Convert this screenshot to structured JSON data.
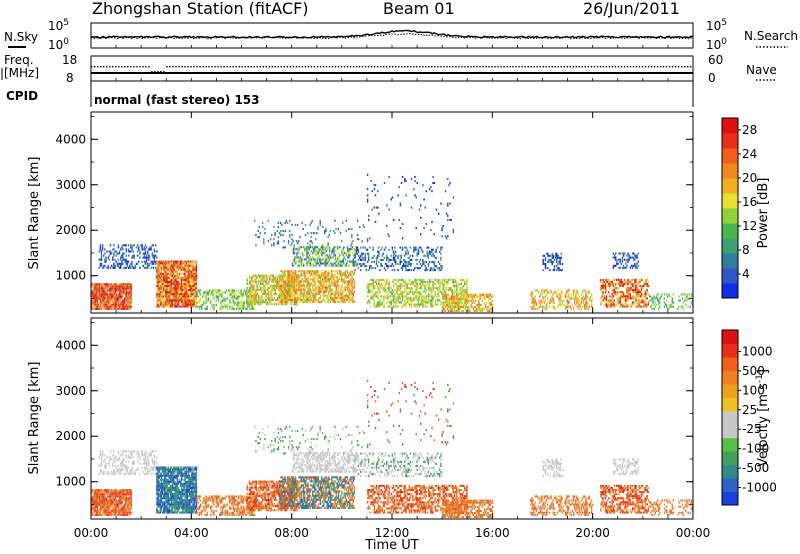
{
  "header": {
    "station_title": "Zhongshan Station (fitACF)",
    "beam": "Beam 01",
    "date": "26/Jun/2011"
  },
  "top_panels": {
    "nsky_label": "N.Sky",
    "nsky_tick_top": "10^5",
    "nsky_tick_bottom": "10^0",
    "nsearch_label": "N.Search",
    "nsearch_tick_top": "10^5",
    "nsearch_tick_bottom": "10^0",
    "freq_label_line1": "Freq.",
    "freq_label_line2": "[MHz]",
    "freq_tick_top": "18",
    "freq_tick_bottom": "8",
    "nave_label": "Nave",
    "nave_tick_top": "60",
    "nave_tick_bottom": "0",
    "cpid_label": "CPID",
    "cpid_value": "normal (fast stereo) 153"
  },
  "chart_data": [
    {
      "type": "heatmap",
      "name": "power",
      "ylabel": "Slant Range [km]",
      "yticks": [
        1000,
        2000,
        3000,
        4000
      ],
      "ylim": [
        180,
        4600
      ],
      "xlim": [
        0,
        24
      ],
      "colorbar_label": "Power [dB]",
      "colorbar_ticks": [
        4,
        8,
        12,
        16,
        20,
        24,
        28
      ],
      "colorbar_colors": [
        "#0a2ee6",
        "#2f56c8",
        "#2f7ea0",
        "#3fa070",
        "#46b84a",
        "#8fd23a",
        "#e8e030",
        "#f0b020",
        "#f08a20",
        "#f06018",
        "#e83018",
        "#e01010"
      ],
      "colorbar_range": [
        0,
        30
      ]
    },
    {
      "type": "heatmap",
      "name": "velocity",
      "ylabel": "Slant Range [km]",
      "yticks": [
        1000,
        2000,
        3000,
        4000
      ],
      "ylim": [
        180,
        4600
      ],
      "xlim": [
        0,
        24
      ],
      "colorbar_label": "Velocity [m s^-1]",
      "colorbar_ticks": [
        "1000",
        "500",
        "100",
        "25",
        "-25",
        "-100",
        "-500",
        "-1000"
      ],
      "colorbar_colors": [
        "#1a3ee0",
        "#2f62c8",
        "#2f8a8a",
        "#3fa060",
        "#58c040",
        "#c8c8c8",
        "#c8c8c8",
        "#f0c020",
        "#f0a020",
        "#f08020",
        "#f06018",
        "#e83018",
        "#e01010"
      ]
    }
  ],
  "x_axis": {
    "ticks": [
      "00:00",
      "04:00",
      "08:00",
      "12:00",
      "16:00",
      "20:00",
      "00:00"
    ],
    "label": "Time UT"
  }
}
